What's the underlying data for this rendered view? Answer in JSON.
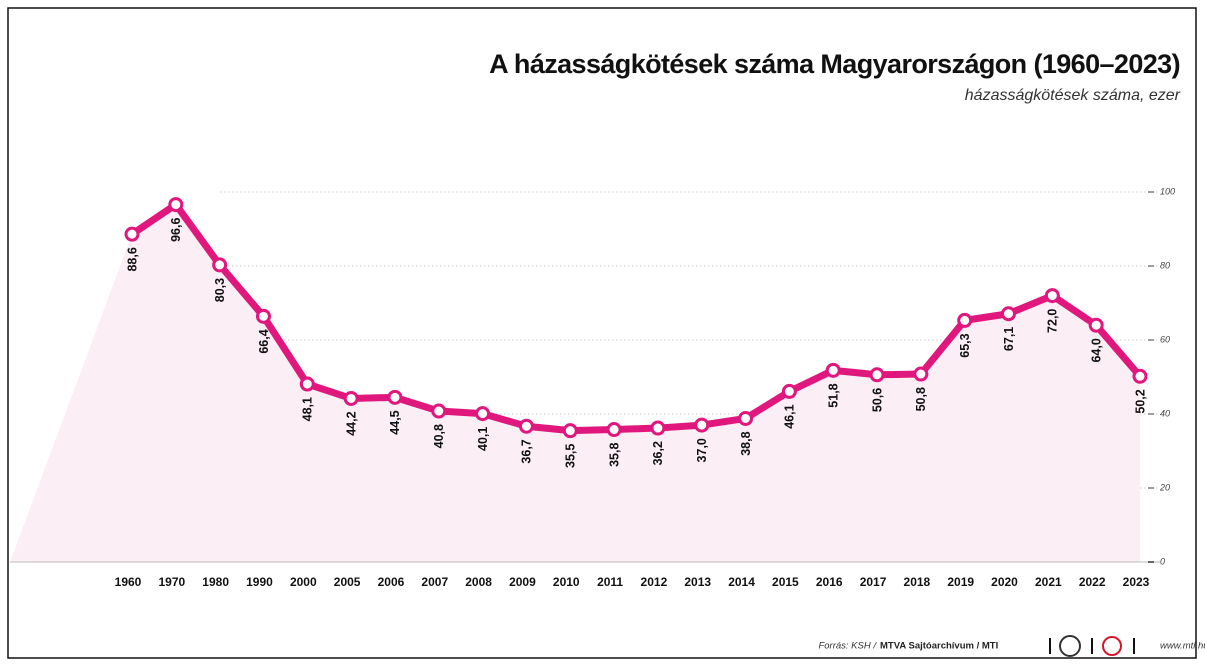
{
  "chart_data": {
    "type": "line",
    "title": "A házasságkötések száma Magyarországon (1960–2023)",
    "subtitle": "házasságkötések száma, ezer",
    "categories": [
      "1960",
      "1970",
      "1980",
      "1990",
      "2000",
      "2005",
      "2006",
      "2007",
      "2008",
      "2009",
      "2010",
      "2011",
      "2012",
      "2013",
      "2014",
      "2015",
      "2016",
      "2017",
      "2018",
      "2019",
      "2020",
      "2021",
      "2022",
      "2023"
    ],
    "values": [
      88.6,
      96.6,
      80.3,
      66.4,
      48.1,
      44.2,
      44.5,
      40.8,
      40.1,
      36.7,
      35.5,
      35.8,
      36.2,
      37.0,
      38.8,
      46.1,
      51.8,
      50.6,
      50.8,
      65.3,
      67.1,
      72.0,
      64.0,
      50.2
    ],
    "value_labels": [
      "88,6",
      "96,6",
      "80,3",
      "66,4",
      "48,1",
      "44,2",
      "44,5",
      "40,8",
      "40,1",
      "36,7",
      "35,5",
      "35,8",
      "36,2",
      "37,0",
      "38,8",
      "46,1",
      "51,8",
      "50,6",
      "50,8",
      "65,3",
      "67,1",
      "72,0",
      "64,0",
      "50,2"
    ],
    "color": "#e0177d",
    "area_color": "#fbeef4",
    "ylim": [
      0,
      100
    ],
    "yticks": [
      0,
      20,
      40,
      60,
      80,
      100
    ],
    "grid": true,
    "source_prefix": "Forrás: KSH /",
    "source_bold": "MTVA Sajtóarchívum / MTI",
    "website": "www.mti.hu"
  }
}
